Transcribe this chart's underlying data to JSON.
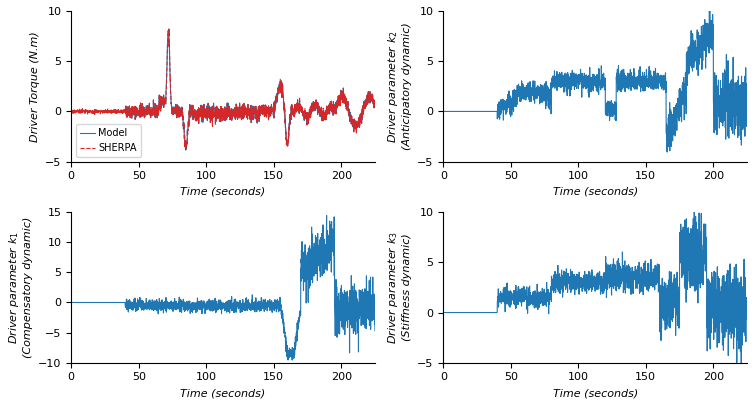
{
  "fig_width": 7.54,
  "fig_height": 4.05,
  "dpi": 100,
  "xlim": [
    0,
    225
  ],
  "xticks": [
    0,
    50,
    100,
    150,
    200
  ],
  "xlabel": "Time (seconds)",
  "plot1": {
    "ylabel": "Driver Torque (N.m)",
    "ylim": [
      -5,
      10
    ],
    "yticks": [
      -5,
      0,
      5,
      10
    ],
    "legend_model": "Model",
    "legend_sherpa": "SHERPA"
  },
  "plot2": {
    "ylabel": "Driver parameter k$_2$\n(Anticipatory dynamic)",
    "ylim": [
      -5,
      10
    ],
    "yticks": [
      -5,
      0,
      5,
      10
    ]
  },
  "plot3": {
    "ylabel": "Driver parameter k$_1$\n(Compensatory dynamic)",
    "ylim": [
      -10,
      15
    ],
    "yticks": [
      -10,
      -5,
      0,
      5,
      10,
      15
    ]
  },
  "plot4": {
    "ylabel": "Driver parameter k$_3$\n(Stiffness dynamic)",
    "ylim": [
      -5,
      10
    ],
    "yticks": [
      -5,
      0,
      5,
      10
    ]
  },
  "line_color_model": "#1f77b4",
  "line_color_sherpa": "#d62728",
  "line_width": 0.8,
  "font_size_label": 8,
  "font_size_tick": 8
}
